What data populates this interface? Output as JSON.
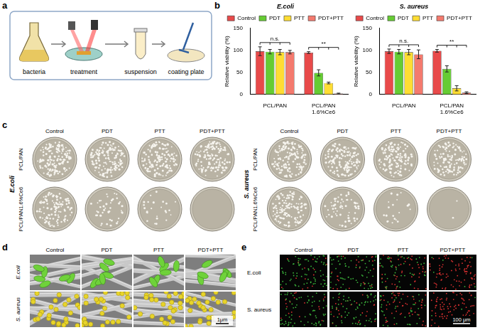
{
  "panel_labels": [
    "a",
    "b",
    "c",
    "d",
    "e"
  ],
  "schematic": {
    "steps": [
      "bacteria",
      "treatment",
      "suspension",
      "coating plate"
    ]
  },
  "chart_data": [
    {
      "type": "bar",
      "title": "E.coli",
      "categories": [
        "PCL/PAN",
        "PCL/PAN1.6%Ce6"
      ],
      "y_label": "Relative viability (%)",
      "ylim": [
        0,
        150
      ],
      "yticks": [
        0,
        50,
        100,
        150
      ],
      "grid": false,
      "legend": "top",
      "series": [
        {
          "name": "Control",
          "color": "#e84a4a",
          "values": [
            98,
            95
          ],
          "errors": [
            10,
            2
          ]
        },
        {
          "name": "PDT",
          "color": "#66cc33",
          "values": [
            97,
            49
          ],
          "errors": [
            5,
            7
          ]
        },
        {
          "name": "PTT",
          "color": "#ffdd33",
          "values": [
            96,
            26
          ],
          "errors": [
            6,
            2
          ]
        },
        {
          "name": "PDT+PTT",
          "color": "#f47a6e",
          "values": [
            96,
            2
          ],
          "errors": [
            4,
            1
          ]
        }
      ],
      "annotations": [
        {
          "text": "n.s.",
          "category": "PCL/PAN"
        },
        {
          "text": "**",
          "category": "PCL/PAN1.6%Ce6"
        }
      ]
    },
    {
      "type": "bar",
      "title": "S. aureus",
      "categories": [
        "PCL/PAN",
        "PCL/PAN1.6%Ce6"
      ],
      "y_label": "Relative viability (%)",
      "ylim": [
        0,
        150
      ],
      "yticks": [
        0,
        50,
        100,
        150
      ],
      "grid": false,
      "legend": "top",
      "series": [
        {
          "name": "Control",
          "color": "#e84a4a",
          "values": [
            98,
            99
          ],
          "errors": [
            5,
            3
          ]
        },
        {
          "name": "PDT",
          "color": "#66cc33",
          "values": [
            97,
            58
          ],
          "errors": [
            5,
            7
          ]
        },
        {
          "name": "PTT",
          "color": "#ffdd33",
          "values": [
            96,
            14
          ],
          "errors": [
            6,
            6
          ]
        },
        {
          "name": "PDT+PTT",
          "color": "#f47a6e",
          "values": [
            91,
            4
          ],
          "errors": [
            10,
            2
          ]
        }
      ],
      "annotations": [
        {
          "text": "n.s.",
          "category": "PCL/PAN"
        },
        {
          "text": "**",
          "category": "PCL/PAN1.6%Ce6"
        }
      ]
    }
  ],
  "plates": {
    "organisms": [
      "E.coli",
      "S. aureus"
    ],
    "columns": [
      "Control",
      "PDT",
      "PTT",
      "PDT+PTT"
    ],
    "rows": [
      "PCL/PAN",
      "PCL/PAN1.6%Ce6"
    ]
  },
  "sem": {
    "columns": [
      "Control",
      "PDT",
      "PTT",
      "PDT+PTT"
    ],
    "rows": [
      "E.coli",
      "S. aureus"
    ],
    "scale_bar": "1μm"
  },
  "fluorescence": {
    "columns": [
      "Control",
      "PDT",
      "PTT",
      "PDT+PTT"
    ],
    "rows": [
      "E.coli",
      "S. aureus"
    ],
    "scale_bar": "100 μm"
  }
}
